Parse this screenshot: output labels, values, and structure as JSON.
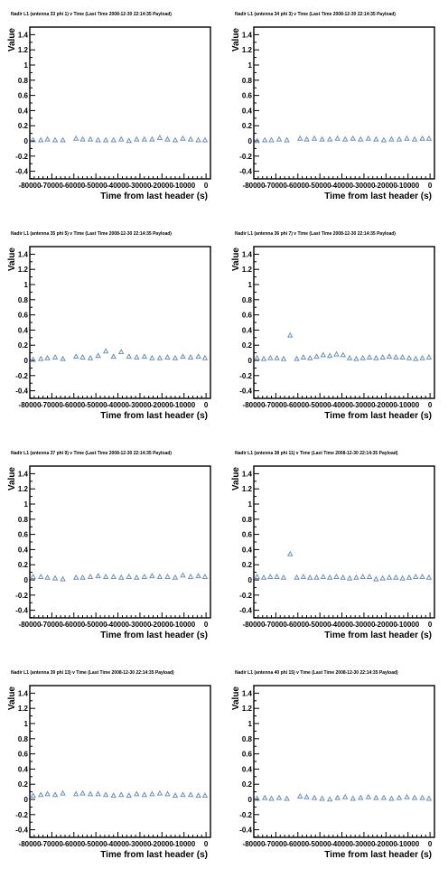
{
  "chart_data": [
    {
      "type": "scatter",
      "title": "Nadir L1 (antenna 33 phi 1) v Time (Last Time 2008-12-30 22:14:35 Payload)",
      "xlabel": "Time from last header (s)",
      "ylabel": "Value",
      "xlim": [
        -80000,
        2000
      ],
      "ylim": [
        -0.5,
        1.5
      ],
      "xticks": [
        "-80000",
        "-70000",
        "-60000",
        "-50000",
        "-40000",
        "-30000",
        "-20000",
        "-10000",
        "0"
      ],
      "yticks": [
        "-0.4",
        "-0.2",
        "0",
        "0.2",
        "0.4",
        "0.6",
        "0.8",
        "1",
        "1.2",
        "1.4"
      ],
      "marker_color": "#6b8fc2",
      "x": [
        -78500,
        -75000,
        -72000,
        -68500,
        -65000,
        -59000,
        -56000,
        -52500,
        -49000,
        -45500,
        -42000,
        -38500,
        -35000,
        -31500,
        -28000,
        -24500,
        -21000,
        -17500,
        -14000,
        -10500,
        -7000,
        -3500,
        -500
      ],
      "y": [
        0.01,
        0.01,
        0.02,
        0.01,
        0.01,
        0.03,
        0.02,
        0.02,
        0.01,
        0.01,
        0.01,
        0.02,
        0.0,
        0.02,
        0.02,
        0.02,
        0.04,
        0.02,
        0.01,
        0.03,
        0.02,
        0.01,
        0.01
      ]
    },
    {
      "type": "scatter",
      "title": "Nadir L1 (antenna 34 phi 3) v Time (Last Time 2008-12-30 22:14:35 Payload)",
      "xlabel": "Time from last header (s)",
      "ylabel": "Value",
      "xlim": [
        -80000,
        2000
      ],
      "ylim": [
        -0.5,
        1.5
      ],
      "xticks": [
        "-80000",
        "-70000",
        "-60000",
        "-50000",
        "-40000",
        "-30000",
        "-20000",
        "-10000",
        "0"
      ],
      "yticks": [
        "-0.4",
        "-0.2",
        "0",
        "0.2",
        "0.4",
        "0.6",
        "0.8",
        "1",
        "1.2",
        "1.4"
      ],
      "marker_color": "#6b8fc2",
      "x": [
        -78500,
        -75000,
        -72000,
        -68500,
        -65000,
        -59000,
        -56000,
        -52500,
        -49000,
        -45500,
        -42000,
        -38500,
        -35000,
        -31500,
        -28000,
        -24500,
        -21000,
        -17500,
        -14000,
        -10500,
        -7000,
        -3500,
        -500
      ],
      "y": [
        0.0,
        0.01,
        0.01,
        0.02,
        0.01,
        0.03,
        0.02,
        0.03,
        0.02,
        0.02,
        0.03,
        0.02,
        0.03,
        0.02,
        0.03,
        0.02,
        0.01,
        0.02,
        0.02,
        0.03,
        0.02,
        0.03,
        0.03
      ]
    },
    {
      "type": "scatter",
      "title": "Nadir L1 (antenna 35 phi 5) v Time (Last Time 2008-12-30 22:14:35 Payload)",
      "xlabel": "Time from last header (s)",
      "ylabel": "Value",
      "xlim": [
        -80000,
        2000
      ],
      "ylim": [
        -0.5,
        1.5
      ],
      "xticks": [
        "-80000",
        "-70000",
        "-60000",
        "-50000",
        "-40000",
        "-30000",
        "-20000",
        "-10000",
        "0"
      ],
      "yticks": [
        "-0.4",
        "-0.2",
        "0",
        "0.2",
        "0.4",
        "0.6",
        "0.8",
        "1",
        "1.2",
        "1.4"
      ],
      "marker_color": "#6b8fc2",
      "x": [
        -78500,
        -75000,
        -72000,
        -68500,
        -65000,
        -59000,
        -56000,
        -52500,
        -49000,
        -45500,
        -42000,
        -38500,
        -35000,
        -31500,
        -28000,
        -24500,
        -21000,
        -17500,
        -14000,
        -10500,
        -7000,
        -3500,
        -500
      ],
      "y": [
        0.01,
        0.02,
        0.03,
        0.04,
        0.02,
        0.05,
        0.04,
        0.03,
        0.06,
        0.12,
        0.05,
        0.11,
        0.05,
        0.04,
        0.05,
        0.03,
        0.03,
        0.04,
        0.03,
        0.05,
        0.04,
        0.05,
        0.03
      ]
    },
    {
      "type": "scatter",
      "title": "Nadir L1 (antenna 36 phi 7) v Time (Last Time 2008-12-30 22:14:35 Payload)",
      "xlabel": "Time from last header (s)",
      "ylabel": "Value",
      "xlim": [
        -80000,
        2000
      ],
      "ylim": [
        -0.5,
        1.5
      ],
      "xticks": [
        "-80000",
        "-70000",
        "-60000",
        "-50000",
        "-40000",
        "-30000",
        "-20000",
        "-10000",
        "0"
      ],
      "yticks": [
        "-0.4",
        "-0.2",
        "0",
        "0.2",
        "0.4",
        "0.6",
        "0.8",
        "1",
        "1.2",
        "1.4"
      ],
      "marker_color": "#6b8fc2",
      "x": [
        -78500,
        -75500,
        -72500,
        -69500,
        -66500,
        -63500,
        -60500,
        -57500,
        -54500,
        -51500,
        -48500,
        -45500,
        -42500,
        -39500,
        -36500,
        -33500,
        -30500,
        -27500,
        -24500,
        -21500,
        -18500,
        -15500,
        -12500,
        -9500,
        -6500,
        -3500,
        -500
      ],
      "y": [
        0.03,
        0.02,
        0.03,
        0.03,
        0.02,
        0.33,
        0.02,
        0.04,
        0.03,
        0.05,
        0.07,
        0.06,
        0.08,
        0.07,
        0.03,
        0.02,
        0.03,
        0.04,
        0.03,
        0.04,
        0.05,
        0.04,
        0.04,
        0.03,
        0.02,
        0.03,
        0.04
      ]
    },
    {
      "type": "scatter",
      "title": "Nadir L1 (antenna 37 phi 9) v Time (Last Time 2008-12-30 22:14:35 Payload)",
      "xlabel": "Time from last header (s)",
      "ylabel": "Value",
      "xlim": [
        -80000,
        2000
      ],
      "ylim": [
        -0.5,
        1.5
      ],
      "xticks": [
        "-80000",
        "-70000",
        "-60000",
        "-50000",
        "-40000",
        "-30000",
        "-20000",
        "-10000",
        "0"
      ],
      "yticks": [
        "-0.4",
        "-0.2",
        "0",
        "0.2",
        "0.4",
        "0.6",
        "0.8",
        "1",
        "1.2",
        "1.4"
      ],
      "marker_color": "#6b8fc2",
      "x": [
        -78500,
        -75000,
        -72000,
        -68500,
        -65000,
        -59000,
        -56000,
        -52500,
        -49000,
        -45500,
        -42000,
        -38500,
        -35000,
        -31500,
        -28000,
        -24500,
        -21000,
        -17500,
        -14000,
        -10500,
        -7000,
        -3500,
        -500
      ],
      "y": [
        0.04,
        0.04,
        0.03,
        0.02,
        0.01,
        0.03,
        0.03,
        0.04,
        0.05,
        0.04,
        0.04,
        0.03,
        0.04,
        0.03,
        0.04,
        0.05,
        0.04,
        0.04,
        0.03,
        0.06,
        0.04,
        0.05,
        0.04
      ]
    },
    {
      "type": "scatter",
      "title": "Nadir L1 (antenna 38 phi 11) v Time (Last Time 2008-12-30 22:14:35 Payload)",
      "xlabel": "Time from last header (s)",
      "ylabel": "Value",
      "xlim": [
        -80000,
        2000
      ],
      "ylim": [
        -0.5,
        1.5
      ],
      "xticks": [
        "-80000",
        "-70000",
        "-60000",
        "-50000",
        "-40000",
        "-30000",
        "-20000",
        "-10000",
        "0"
      ],
      "yticks": [
        "-0.4",
        "-0.2",
        "0",
        "0.2",
        "0.4",
        "0.6",
        "0.8",
        "1",
        "1.2",
        "1.4"
      ],
      "marker_color": "#6b8fc2",
      "x": [
        -78500,
        -75500,
        -72500,
        -69500,
        -66500,
        -63500,
        -60500,
        -57500,
        -54500,
        -51500,
        -48500,
        -45500,
        -42500,
        -39500,
        -36500,
        -33500,
        -30500,
        -27500,
        -24500,
        -21500,
        -18500,
        -15500,
        -12500,
        -9500,
        -6500,
        -3500,
        -500
      ],
      "y": [
        0.04,
        0.03,
        0.04,
        0.04,
        0.03,
        0.34,
        0.03,
        0.04,
        0.03,
        0.03,
        0.04,
        0.03,
        0.04,
        0.03,
        0.02,
        0.03,
        0.04,
        0.04,
        0.01,
        0.02,
        0.03,
        0.03,
        0.02,
        0.03,
        0.04,
        0.04,
        0.03
      ]
    },
    {
      "type": "scatter",
      "title": "Nadir L1 (antenna 39 phi 13) v Time (Last Time 2008-12-30 22:14:35 Payload)",
      "xlabel": "Time from last header (s)",
      "ylabel": "Value",
      "xlim": [
        -80000,
        2000
      ],
      "ylim": [
        -0.5,
        1.5
      ],
      "xticks": [
        "-80000",
        "-70000",
        "-60000",
        "-50000",
        "-40000",
        "-30000",
        "-20000",
        "-10000",
        "0"
      ],
      "yticks": [
        "-0.4",
        "-0.2",
        "0",
        "0.2",
        "0.4",
        "0.6",
        "0.8",
        "1",
        "1.2",
        "1.4"
      ],
      "marker_color": "#6b8fc2",
      "x": [
        -78500,
        -75000,
        -72000,
        -68500,
        -65000,
        -59000,
        -56000,
        -52500,
        -49000,
        -45500,
        -42000,
        -38500,
        -35000,
        -31500,
        -28000,
        -24500,
        -21000,
        -17500,
        -14000,
        -10500,
        -7000,
        -3500,
        -500
      ],
      "y": [
        0.05,
        0.06,
        0.07,
        0.06,
        0.08,
        0.07,
        0.08,
        0.07,
        0.07,
        0.06,
        0.05,
        0.06,
        0.05,
        0.07,
        0.06,
        0.07,
        0.08,
        0.07,
        0.05,
        0.06,
        0.06,
        0.05,
        0.05
      ]
    },
    {
      "type": "scatter",
      "title": "Nadir L1 (antenna 40 phi 15) v Time (Last Time 2008-12-30 22:14:35 Payload)",
      "xlabel": "Time from last header (s)",
      "ylabel": "Value",
      "xlim": [
        -80000,
        2000
      ],
      "ylim": [
        -0.5,
        1.5
      ],
      "xticks": [
        "-80000",
        "-70000",
        "-60000",
        "-50000",
        "-40000",
        "-30000",
        "-20000",
        "-10000",
        "0"
      ],
      "yticks": [
        "-0.4",
        "-0.2",
        "0",
        "0.2",
        "0.4",
        "0.6",
        "0.8",
        "1",
        "1.2",
        "1.4"
      ],
      "marker_color": "#6b8fc2",
      "x": [
        -78500,
        -75000,
        -72000,
        -68500,
        -65000,
        -59000,
        -56000,
        -52500,
        -49000,
        -45500,
        -42000,
        -38500,
        -35000,
        -31500,
        -28000,
        -24500,
        -21000,
        -17500,
        -14000,
        -10500,
        -7000,
        -3500,
        -500
      ],
      "y": [
        0.01,
        0.02,
        0.01,
        0.02,
        0.01,
        0.04,
        0.03,
        0.02,
        0.01,
        0.0,
        0.02,
        0.03,
        0.01,
        0.02,
        0.03,
        0.02,
        0.02,
        0.01,
        0.02,
        0.03,
        0.02,
        0.02,
        0.01
      ]
    }
  ]
}
